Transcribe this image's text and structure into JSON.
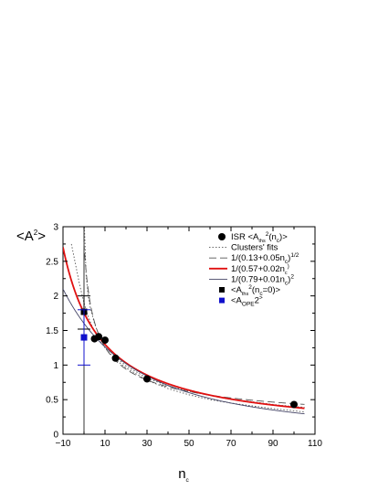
{
  "chart_data": {
    "type": "scatter",
    "xlabel": "n",
    "xlabel_sub": "c",
    "ylabel": "<A",
    "ylabel_sup": "2",
    "ylabel_end": ">",
    "xlim": [
      -10,
      110
    ],
    "ylim": [
      0,
      3
    ],
    "xticks": [
      -10,
      10,
      30,
      50,
      70,
      90,
      110
    ],
    "xminor": [
      0,
      20,
      40,
      60,
      80,
      100
    ],
    "yticks": [
      0,
      0.5,
      1,
      1.5,
      2,
      2.5,
      3
    ],
    "grid": false,
    "legend_position": "top-right",
    "series": [
      {
        "name": "ISR <A",
        "name_parts": [
          "ISR <A",
          "ths",
          "2",
          "(n",
          "c",
          ")>"
        ],
        "kind": "points",
        "marker": "circle",
        "color": "#000000",
        "x": [
          5,
          7,
          10,
          15,
          30,
          100
        ],
        "y": [
          1.38,
          1.41,
          1.36,
          1.1,
          0.8,
          0.43
        ]
      },
      {
        "name": "Clusters' fits",
        "name_parts": [
          "Clusters' fits"
        ],
        "kind": "curves",
        "style": "dotted",
        "color": "#555555",
        "curves": [
          {
            "x": [
              0.2,
              1,
              2,
              3,
              5,
              7,
              10,
              15,
              20,
              30,
              40,
              50,
              60,
              70,
              80,
              90,
              100,
              105
            ],
            "y": [
              3.0,
              2.3,
              2.0,
              1.83,
              1.6,
              1.44,
              1.3,
              1.12,
              0.99,
              0.81,
              0.7,
              0.62,
              0.56,
              0.51,
              0.47,
              0.43,
              0.4,
              0.39
            ]
          },
          {
            "x": [
              -6,
              -4,
              -2,
              0,
              2,
              4,
              6,
              8,
              10,
              15,
              20,
              30,
              40,
              50,
              60,
              70,
              80,
              90,
              100,
              105
            ],
            "y": [
              2.75,
              2.45,
              2.15,
              1.9,
              1.7,
              1.55,
              1.43,
              1.33,
              1.25,
              1.08,
              0.96,
              0.78,
              0.66,
              0.57,
              0.5,
              0.45,
              0.41,
              0.37,
              0.34,
              0.32
            ]
          }
        ]
      },
      {
        "name": "1/(0.13+0.05n",
        "name_parts": [
          "1/(0.13+0.05n",
          "c",
          ")",
          "1/2"
        ],
        "kind": "function",
        "style": "dashed",
        "color": "#555555",
        "a": 0.13,
        "b": 0.05,
        "power": 0.5,
        "domain": [
          0,
          105
        ]
      },
      {
        "name": "1/(0.57+0.02n",
        "name_parts": [
          "1/(0.57+0.02n",
          "c",
          ")"
        ],
        "kind": "function",
        "style": "solid",
        "color": "#e01010",
        "a": 0.57,
        "b": 0.02,
        "power": 1,
        "domain": [
          -10,
          105
        ]
      },
      {
        "name": "1/(0.79+0.01n",
        "name_parts": [
          "1/(0.79+0.01n",
          "c",
          ")",
          "2"
        ],
        "kind": "function",
        "style": "solid",
        "color": "#444466",
        "a": 0.79,
        "b": 0.01,
        "power": 2,
        "domain": [
          -10,
          105
        ]
      },
      {
        "name": "<A",
        "name_parts": [
          "<A",
          "ths",
          "2",
          "(n",
          "c",
          "=0)>"
        ],
        "kind": "points",
        "marker": "square",
        "color": "#000000",
        "x": [
          0
        ],
        "y": [
          1.77
        ],
        "errorbar": [
          1.52,
          2.0
        ]
      },
      {
        "name": "<A",
        "name_parts": [
          "<A",
          "OPE",
          "2",
          ">"
        ],
        "kind": "points",
        "marker": "square",
        "color": "#1010cc",
        "x": [
          0
        ],
        "y": [
          1.4
        ],
        "errorbar": [
          1.0,
          1.8
        ]
      }
    ],
    "vertical_line_x": 0
  }
}
